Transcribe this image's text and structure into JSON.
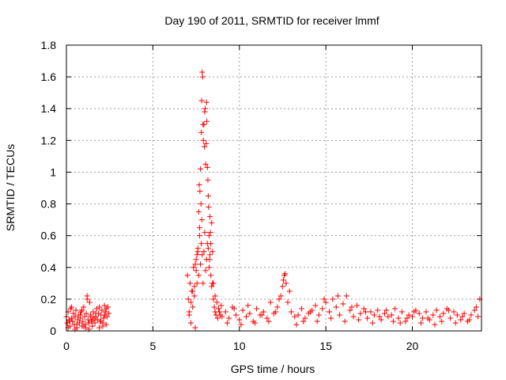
{
  "chart_data": {
    "type": "scatter",
    "title": "Day 190 of 2011, SRMTID for receiver lmmf",
    "xlabel": "GPS time / hours",
    "ylabel": "SRMTID / TECUs",
    "xlim": [
      0,
      24
    ],
    "ylim": [
      0,
      1.8
    ],
    "xticks": [
      0,
      5,
      10,
      15,
      20
    ],
    "yticks": [
      0,
      0.2,
      0.4,
      0.6,
      0.8,
      1,
      1.2,
      1.4,
      1.6,
      1.8
    ],
    "grid": true,
    "marker": "plus",
    "marker_color": "#ff0000",
    "series": [
      {
        "x": [
          0.0,
          0.05,
          0.1,
          0.15,
          0.2,
          0.25,
          0.3,
          0.35,
          0.4,
          0.45,
          0.5,
          0.55,
          0.6,
          0.65,
          0.7,
          0.75,
          0.8,
          0.85,
          0.9,
          0.95,
          1.0,
          1.05,
          1.1,
          1.15,
          1.2,
          1.25,
          1.3,
          1.35,
          1.4,
          1.45,
          1.5,
          1.55,
          1.6,
          1.65,
          1.7,
          1.75,
          1.8,
          1.85,
          1.9,
          1.95,
          2.0,
          2.05,
          2.1,
          2.15,
          2.2,
          2.25,
          2.3,
          2.35,
          2.4,
          2.45,
          0.1,
          0.3,
          0.5,
          0.8,
          1.0,
          1.2,
          1.3,
          1.5,
          1.9,
          2.1,
          2.3,
          0.2,
          0.6,
          0.9,
          1.1,
          1.4,
          1.7,
          2.0,
          2.2,
          7.0,
          7.05,
          7.1,
          7.15,
          7.2,
          7.25,
          7.3,
          7.35,
          7.4,
          7.45,
          7.5,
          7.55,
          7.6,
          7.65,
          7.7,
          7.75,
          7.8,
          7.85,
          7.9,
          7.95,
          8.0,
          8.05,
          8.1,
          8.15,
          8.2,
          8.25,
          8.3,
          8.35,
          8.4,
          8.45,
          8.5,
          8.55,
          8.6,
          8.65,
          8.7,
          8.75,
          8.8,
          8.85,
          8.9,
          8.95,
          9.0,
          7.7,
          7.72,
          7.75,
          7.8,
          7.82,
          7.85,
          7.88,
          7.9,
          7.92,
          7.95,
          7.98,
          8.0,
          8.02,
          8.05,
          8.08,
          8.1,
          8.12,
          8.15,
          8.18,
          8.2,
          8.22,
          8.25,
          8.3,
          8.35,
          8.4,
          7.6,
          7.65,
          7.68,
          7.78,
          7.83,
          8.28,
          8.33,
          7.5,
          7.55,
          8.45,
          7.3,
          7.4,
          7.45,
          8.5,
          8.6,
          7.1,
          7.2,
          9.2,
          9.4,
          9.6,
          9.8,
          10.0,
          10.2,
          10.4,
          10.6,
          10.8,
          11.0,
          11.2,
          11.4,
          11.6,
          11.8,
          12.0,
          12.2,
          12.4,
          12.5,
          12.6,
          12.7,
          12.8,
          13.0,
          13.2,
          13.4,
          13.6,
          13.8,
          14.0,
          14.2,
          14.4,
          14.6,
          14.8,
          15.0,
          15.2,
          15.4,
          15.6,
          15.8,
          16.0,
          16.2,
          16.4,
          16.6,
          16.8,
          17.0,
          17.2,
          17.4,
          17.6,
          17.8,
          18.0,
          18.2,
          18.4,
          18.6,
          18.8,
          19.0,
          19.2,
          19.4,
          19.6,
          19.8,
          20.0,
          20.2,
          20.4,
          20.6,
          20.8,
          21.0,
          21.2,
          21.4,
          21.6,
          21.8,
          22.0,
          22.2,
          22.4,
          22.6,
          22.8,
          23.0,
          23.2,
          23.4,
          23.6,
          23.8,
          23.9,
          9.3,
          9.7,
          10.1,
          10.5,
          10.9,
          11.3,
          11.7,
          12.1,
          12.3,
          12.55,
          12.65,
          12.9,
          13.3,
          13.7,
          14.1,
          14.5,
          14.9,
          15.3,
          15.7,
          16.1,
          16.5,
          16.9,
          17.3,
          17.7,
          18.1,
          18.5,
          18.9,
          19.3,
          19.7,
          20.1,
          20.5,
          20.9,
          21.3,
          21.7,
          22.1,
          22.5,
          22.9,
          23.3,
          23.7
        ],
        "y": [
          0.09,
          0.05,
          0.12,
          0.07,
          0.03,
          0.14,
          0.08,
          0.06,
          0.11,
          0.04,
          0.09,
          0.13,
          0.02,
          0.07,
          0.1,
          0.05,
          0.08,
          0.12,
          0.03,
          0.06,
          0.15,
          0.09,
          0.04,
          0.11,
          0.22,
          0.07,
          0.05,
          0.18,
          0.1,
          0.06,
          0.03,
          0.12,
          0.08,
          0.05,
          0.09,
          0.14,
          0.07,
          0.11,
          0.02,
          0.06,
          0.1,
          0.13,
          0.05,
          0.08,
          0.16,
          0.12,
          0.04,
          0.09,
          0.15,
          0.11,
          0.02,
          0.15,
          0.01,
          0.1,
          0.03,
          0.2,
          0.01,
          0.07,
          0.15,
          0.03,
          0.14,
          0.06,
          0.04,
          0.13,
          0.02,
          0.09,
          0.11,
          0.06,
          0.1,
          0.35,
          0.2,
          0.1,
          0.3,
          0.05,
          0.25,
          0.15,
          0.4,
          0.22,
          0.02,
          0.45,
          0.3,
          0.5,
          0.35,
          0.6,
          0.42,
          0.55,
          0.48,
          0.3,
          0.5,
          0.62,
          0.38,
          0.45,
          0.55,
          0.52,
          0.4,
          0.48,
          0.35,
          0.28,
          0.3,
          0.2,
          0.15,
          0.12,
          0.1,
          0.18,
          0.08,
          0.14,
          0.12,
          0.1,
          0.16,
          0.09,
          0.65,
          0.88,
          1.02,
          1.25,
          1.45,
          1.63,
          1.6,
          1.3,
          1.2,
          1.3,
          1.16,
          1.38,
          1.4,
          1.05,
          1.18,
          1.44,
          1.32,
          1.03,
          0.95,
          0.85,
          0.78,
          0.6,
          0.72,
          0.55,
          0.68,
          0.52,
          0.75,
          0.92,
          0.8,
          0.7,
          0.45,
          0.62,
          0.38,
          0.48,
          0.5,
          0.25,
          0.28,
          0.42,
          0.3,
          0.22,
          0.12,
          0.18,
          0.12,
          0.08,
          0.15,
          0.1,
          0.07,
          0.13,
          0.09,
          0.11,
          0.06,
          0.14,
          0.1,
          0.12,
          0.08,
          0.18,
          0.11,
          0.15,
          0.22,
          0.28,
          0.35,
          0.3,
          0.18,
          0.12,
          0.09,
          0.1,
          0.14,
          0.08,
          0.11,
          0.13,
          0.16,
          0.1,
          0.14,
          0.18,
          0.12,
          0.2,
          0.15,
          0.1,
          0.17,
          0.22,
          0.13,
          0.09,
          0.16,
          0.11,
          0.14,
          0.08,
          0.12,
          0.1,
          0.13,
          0.07,
          0.11,
          0.09,
          0.1,
          0.14,
          0.08,
          0.12,
          0.06,
          0.1,
          0.09,
          0.13,
          0.11,
          0.08,
          0.12,
          0.07,
          0.1,
          0.13,
          0.09,
          0.11,
          0.14,
          0.08,
          0.12,
          0.1,
          0.07,
          0.11,
          0.06,
          0.1,
          0.13,
          0.09,
          0.2,
          0.05,
          0.14,
          0.04,
          0.16,
          0.05,
          0.1,
          0.06,
          0.12,
          0.2,
          0.32,
          0.36,
          0.25,
          0.04,
          0.06,
          0.12,
          0.06,
          0.2,
          0.08,
          0.22,
          0.06,
          0.15,
          0.07,
          0.12,
          0.05,
          0.09,
          0.13,
          0.06,
          0.05,
          0.08,
          0.12,
          0.05,
          0.08,
          0.04,
          0.06,
          0.13,
          0.05,
          0.09,
          0.07,
          0.15
        ]
      }
    ]
  }
}
